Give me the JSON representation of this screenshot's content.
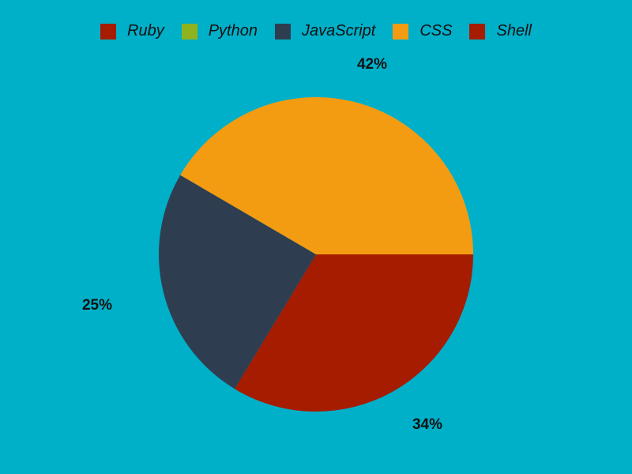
{
  "chart_data": {
    "type": "pie",
    "categories": [
      "Ruby",
      "Python",
      "JavaScript",
      "CSS",
      "Shell"
    ],
    "values": [
      0,
      0,
      25,
      42,
      34
    ],
    "labels": [
      "42%",
      "25%",
      "34%"
    ],
    "colors": [
      "#a51c00",
      "#8fb21f",
      "#2e3e50",
      "#f39c12",
      "#a51c00"
    ],
    "legend": "top"
  }
}
